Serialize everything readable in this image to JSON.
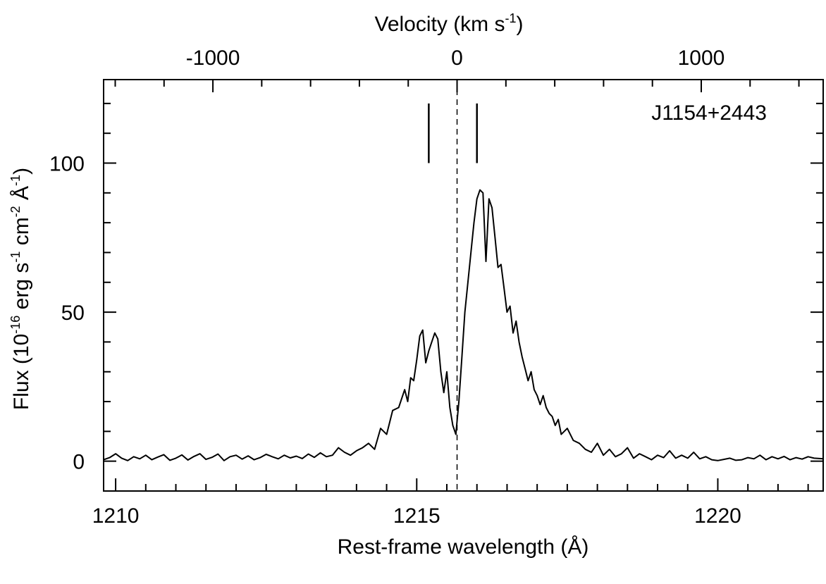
{
  "chart_data": {
    "type": "line",
    "object_label": "J1154+2443",
    "xlabel": "Rest-frame wavelength (Å)",
    "ylabel": {
      "pre": "Flux (10",
      "exp1": "-16",
      "mid1": " erg s",
      "exp2": "-1",
      "mid2": " cm",
      "exp3": "-2",
      "mid3": " Å",
      "exp4": "-1",
      "post": ")"
    },
    "top_axis_label": {
      "pre": "Velocity (km s",
      "exp": "-1",
      "post": ")"
    },
    "xlim": [
      1209.8,
      1221.75
    ],
    "ylim": [
      -10,
      128
    ],
    "x_ticks": [
      1210,
      1215,
      1220
    ],
    "x_tick_labels": [
      "1210",
      "1215",
      "1220"
    ],
    "y_ticks": [
      0,
      50,
      100
    ],
    "y_tick_labels": [
      "0",
      "50",
      "100"
    ],
    "y_minor_step": 10,
    "x_minor_step": 0.5,
    "top_ticks_kms": [
      -1000,
      0,
      1000
    ],
    "top_tick_labels": [
      "-1000",
      "0",
      "1000"
    ],
    "top_minor_step_kms": 200,
    "line_center_A": 1215.67,
    "systemic_marker_x": 1215.67,
    "peak_markers_x": [
      1215.2,
      1216.0
    ],
    "peak_markers_y": [
      120,
      100
    ],
    "series": [
      {
        "name": "spectrum",
        "x": [
          1209.8,
          1209.9,
          1210.0,
          1210.1,
          1210.2,
          1210.3,
          1210.4,
          1210.5,
          1210.6,
          1210.7,
          1210.8,
          1210.9,
          1211.0,
          1211.1,
          1211.2,
          1211.3,
          1211.4,
          1211.5,
          1211.6,
          1211.7,
          1211.8,
          1211.9,
          1212.0,
          1212.1,
          1212.2,
          1212.3,
          1212.4,
          1212.5,
          1212.6,
          1212.7,
          1212.8,
          1212.9,
          1213.0,
          1213.1,
          1213.2,
          1213.3,
          1213.4,
          1213.5,
          1213.6,
          1213.7,
          1213.8,
          1213.9,
          1214.0,
          1214.1,
          1214.2,
          1214.3,
          1214.4,
          1214.5,
          1214.6,
          1214.7,
          1214.8,
          1214.85,
          1214.9,
          1214.95,
          1215.0,
          1215.05,
          1215.1,
          1215.15,
          1215.2,
          1215.25,
          1215.3,
          1215.35,
          1215.4,
          1215.45,
          1215.5,
          1215.55,
          1215.6,
          1215.65,
          1215.7,
          1215.75,
          1215.8,
          1215.85,
          1215.9,
          1215.95,
          1216.0,
          1216.05,
          1216.1,
          1216.15,
          1216.2,
          1216.25,
          1216.3,
          1216.35,
          1216.4,
          1216.45,
          1216.5,
          1216.55,
          1216.6,
          1216.65,
          1216.7,
          1216.75,
          1216.8,
          1216.85,
          1216.9,
          1216.95,
          1217.0,
          1217.05,
          1217.1,
          1217.15,
          1217.2,
          1217.25,
          1217.3,
          1217.35,
          1217.4,
          1217.5,
          1217.6,
          1217.7,
          1217.8,
          1217.9,
          1218.0,
          1218.1,
          1218.2,
          1218.3,
          1218.4,
          1218.5,
          1218.6,
          1218.7,
          1218.8,
          1218.9,
          1219.0,
          1219.1,
          1219.2,
          1219.3,
          1219.4,
          1219.5,
          1219.6,
          1219.7,
          1219.8,
          1219.9,
          1220.0,
          1220.1,
          1220.2,
          1220.3,
          1220.4,
          1220.5,
          1220.6,
          1220.7,
          1220.8,
          1220.9,
          1221.0,
          1221.1,
          1221.2,
          1221.3,
          1221.4,
          1221.5,
          1221.6,
          1221.75
        ],
        "y": [
          0.5,
          1.2,
          2.5,
          1.0,
          0.2,
          1.5,
          0.8,
          2.0,
          0.5,
          1.4,
          2.2,
          0.3,
          1.0,
          2.1,
          0.4,
          1.6,
          2.5,
          0.6,
          1.3,
          2.4,
          0.2,
          1.5,
          2.0,
          0.7,
          1.8,
          0.5,
          1.2,
          2.3,
          1.5,
          0.8,
          2.0,
          1.1,
          1.7,
          0.9,
          2.4,
          1.3,
          2.8,
          1.5,
          2.0,
          4.5,
          3.0,
          2.0,
          3.5,
          4.5,
          6.0,
          4.0,
          11.0,
          9.0,
          17.0,
          18.0,
          24.0,
          20.0,
          28.0,
          27.0,
          34.0,
          42.0,
          44.0,
          33.0,
          37.0,
          40.0,
          43.0,
          41.0,
          30.0,
          23.0,
          30.0,
          18.0,
          12.0,
          9.0,
          20.0,
          35.0,
          50.0,
          60.0,
          70.0,
          80.0,
          88.0,
          91.0,
          90.0,
          67.0,
          88.0,
          85.0,
          75.0,
          65.0,
          66.0,
          58.0,
          50.0,
          52.0,
          43.0,
          47.0,
          40.0,
          35.0,
          31.0,
          27.0,
          30.0,
          24.0,
          22.0,
          19.0,
          22.0,
          18.0,
          16.0,
          15.0,
          12.0,
          14.0,
          9.0,
          11.0,
          7.0,
          6.0,
          4.0,
          3.0,
          6.0,
          2.0,
          4.0,
          1.5,
          2.5,
          4.5,
          1.0,
          2.5,
          1.5,
          0.5,
          2.0,
          1.2,
          3.5,
          1.0,
          2.0,
          1.0,
          3.0,
          0.8,
          1.5,
          0.5,
          0.2,
          0.6,
          1.0,
          0.3,
          0.5,
          1.2,
          0.8,
          2.0,
          0.5,
          1.5,
          0.8,
          1.6,
          0.5,
          1.2,
          0.7,
          1.5,
          1.0,
          0.8
        ]
      }
    ]
  }
}
